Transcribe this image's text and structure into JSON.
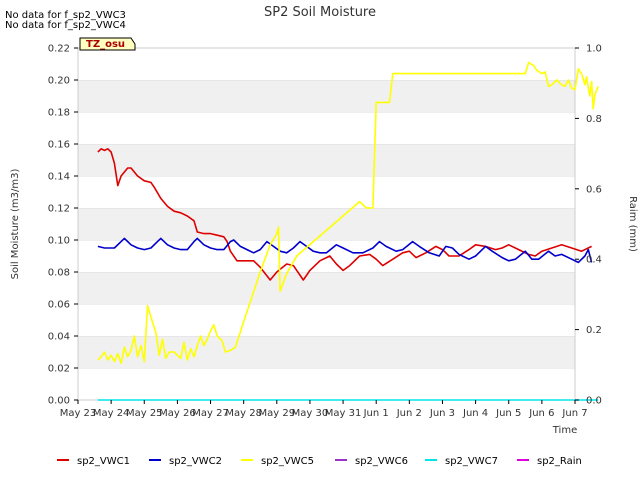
{
  "chart_data": {
    "type": "line",
    "title": "SP2 Soil Moisture",
    "xlabel": "Time",
    "ylabel": "Soil Moisture (m3/m3)",
    "y2label": "Raim (mm)",
    "notes": [
      "No data for f_sp2_VWC3",
      "No data for f_sp2_VWC4"
    ],
    "site_badge": "TZ_osu",
    "x_ticks": [
      "May 23",
      "May 24",
      "May 25",
      "May 26",
      "May 27",
      "May 28",
      "May 29",
      "May 30",
      "May 31",
      "Jun 1",
      "Jun 2",
      "Jun 3",
      "Jun 4",
      "Jun 5",
      "Jun 6",
      "Jun 7"
    ],
    "xlim": [
      0,
      15
    ],
    "ylim": [
      0,
      0.22
    ],
    "y_ticks": [
      "0.00",
      "0.02",
      "0.04",
      "0.06",
      "0.08",
      "0.10",
      "0.12",
      "0.14",
      "0.16",
      "0.18",
      "0.20",
      "0.22"
    ],
    "y2lim": [
      0,
      1.0
    ],
    "y2_ticks": [
      "0.0",
      "0.2",
      "0.4",
      "0.6",
      "0.8",
      "1.0"
    ],
    "grid": "horizontal bands",
    "legend_position": "bottom",
    "series": [
      {
        "name": "sp2_VWC1",
        "color": "#dd0000",
        "axis": "left",
        "points": [
          [
            0.6,
            0.155
          ],
          [
            0.7,
            0.157
          ],
          [
            0.8,
            0.156
          ],
          [
            0.9,
            0.157
          ],
          [
            1.0,
            0.155
          ],
          [
            1.1,
            0.148
          ],
          [
            1.2,
            0.134
          ],
          [
            1.3,
            0.14
          ],
          [
            1.5,
            0.145
          ],
          [
            1.6,
            0.145
          ],
          [
            1.8,
            0.14
          ],
          [
            2.0,
            0.137
          ],
          [
            2.2,
            0.136
          ],
          [
            2.3,
            0.133
          ],
          [
            2.5,
            0.126
          ],
          [
            2.7,
            0.121
          ],
          [
            2.9,
            0.118
          ],
          [
            3.1,
            0.117
          ],
          [
            3.3,
            0.115
          ],
          [
            3.5,
            0.112
          ],
          [
            3.6,
            0.105
          ],
          [
            3.8,
            0.104
          ],
          [
            4.0,
            0.104
          ],
          [
            4.2,
            0.103
          ],
          [
            4.4,
            0.102
          ],
          [
            4.5,
            0.099
          ],
          [
            4.6,
            0.093
          ],
          [
            4.8,
            0.087
          ],
          [
            5.0,
            0.087
          ],
          [
            5.3,
            0.087
          ],
          [
            5.5,
            0.083
          ],
          [
            5.8,
            0.075
          ],
          [
            6.0,
            0.08
          ],
          [
            6.3,
            0.085
          ],
          [
            6.5,
            0.084
          ],
          [
            6.8,
            0.075
          ],
          [
            7.0,
            0.081
          ],
          [
            7.3,
            0.087
          ],
          [
            7.6,
            0.09
          ],
          [
            7.8,
            0.085
          ],
          [
            8.0,
            0.081
          ],
          [
            8.2,
            0.084
          ],
          [
            8.5,
            0.09
          ],
          [
            8.8,
            0.091
          ],
          [
            9.0,
            0.088
          ],
          [
            9.2,
            0.084
          ],
          [
            9.5,
            0.088
          ],
          [
            9.8,
            0.092
          ],
          [
            10.0,
            0.093
          ],
          [
            10.2,
            0.089
          ],
          [
            10.5,
            0.092
          ],
          [
            10.8,
            0.096
          ],
          [
            11.0,
            0.094
          ],
          [
            11.2,
            0.09
          ],
          [
            11.5,
            0.09
          ],
          [
            11.8,
            0.094
          ],
          [
            12.0,
            0.097
          ],
          [
            12.3,
            0.096
          ],
          [
            12.6,
            0.094
          ],
          [
            12.8,
            0.095
          ],
          [
            13.0,
            0.097
          ],
          [
            13.3,
            0.094
          ],
          [
            13.6,
            0.091
          ],
          [
            13.8,
            0.09
          ],
          [
            14.0,
            0.093
          ],
          [
            14.3,
            0.095
          ],
          [
            14.6,
            0.097
          ],
          [
            14.9,
            0.095
          ],
          [
            15.2,
            0.093
          ],
          [
            15.5,
            0.096
          ]
        ]
      },
      {
        "name": "sp2_VWC2",
        "color": "#0000cc",
        "axis": "left",
        "points": [
          [
            0.6,
            0.096
          ],
          [
            0.8,
            0.095
          ],
          [
            1.1,
            0.095
          ],
          [
            1.3,
            0.099
          ],
          [
            1.4,
            0.101
          ],
          [
            1.6,
            0.097
          ],
          [
            1.8,
            0.095
          ],
          [
            2.0,
            0.094
          ],
          [
            2.2,
            0.095
          ],
          [
            2.4,
            0.099
          ],
          [
            2.5,
            0.101
          ],
          [
            2.7,
            0.097
          ],
          [
            2.9,
            0.095
          ],
          [
            3.1,
            0.094
          ],
          [
            3.3,
            0.094
          ],
          [
            3.5,
            0.099
          ],
          [
            3.6,
            0.101
          ],
          [
            3.8,
            0.097
          ],
          [
            4.0,
            0.095
          ],
          [
            4.2,
            0.094
          ],
          [
            4.4,
            0.094
          ],
          [
            4.6,
            0.099
          ],
          [
            4.7,
            0.1
          ],
          [
            4.9,
            0.096
          ],
          [
            5.1,
            0.094
          ],
          [
            5.3,
            0.092
          ],
          [
            5.5,
            0.094
          ],
          [
            5.7,
            0.099
          ],
          [
            5.9,
            0.096
          ],
          [
            6.1,
            0.093
          ],
          [
            6.3,
            0.092
          ],
          [
            6.5,
            0.095
          ],
          [
            6.7,
            0.099
          ],
          [
            6.9,
            0.096
          ],
          [
            7.1,
            0.093
          ],
          [
            7.3,
            0.092
          ],
          [
            7.5,
            0.092
          ],
          [
            7.8,
            0.097
          ],
          [
            8.0,
            0.095
          ],
          [
            8.3,
            0.092
          ],
          [
            8.6,
            0.092
          ],
          [
            8.9,
            0.095
          ],
          [
            9.1,
            0.099
          ],
          [
            9.3,
            0.096
          ],
          [
            9.6,
            0.093
          ],
          [
            9.8,
            0.094
          ],
          [
            10.1,
            0.099
          ],
          [
            10.3,
            0.096
          ],
          [
            10.6,
            0.092
          ],
          [
            10.9,
            0.09
          ],
          [
            11.1,
            0.096
          ],
          [
            11.3,
            0.095
          ],
          [
            11.5,
            0.091
          ],
          [
            11.8,
            0.088
          ],
          [
            12.0,
            0.09
          ],
          [
            12.3,
            0.096
          ],
          [
            12.5,
            0.093
          ],
          [
            12.8,
            0.089
          ],
          [
            13.0,
            0.087
          ],
          [
            13.2,
            0.088
          ],
          [
            13.5,
            0.093
          ],
          [
            13.7,
            0.088
          ],
          [
            13.9,
            0.088
          ],
          [
            14.2,
            0.093
          ],
          [
            14.4,
            0.09
          ],
          [
            14.6,
            0.091
          ],
          [
            14.9,
            0.088
          ],
          [
            15.1,
            0.086
          ],
          [
            15.3,
            0.09
          ],
          [
            15.4,
            0.094
          ],
          [
            15.5,
            0.086
          ]
        ]
      },
      {
        "name": "sp2_VWC5",
        "color": "#ffff00",
        "axis": "left",
        "points": [
          [
            0.6,
            0.025
          ],
          [
            0.7,
            0.027
          ],
          [
            0.8,
            0.03
          ],
          [
            0.9,
            0.025
          ],
          [
            1.0,
            0.028
          ],
          [
            1.1,
            0.024
          ],
          [
            1.2,
            0.029
          ],
          [
            1.3,
            0.023
          ],
          [
            1.4,
            0.033
          ],
          [
            1.5,
            0.027
          ],
          [
            1.6,
            0.031
          ],
          [
            1.7,
            0.04
          ],
          [
            1.8,
            0.027
          ],
          [
            1.9,
            0.034
          ],
          [
            2.0,
            0.024
          ],
          [
            2.1,
            0.059
          ],
          [
            2.2,
            0.052
          ],
          [
            2.35,
            0.042
          ],
          [
            2.45,
            0.028
          ],
          [
            2.55,
            0.038
          ],
          [
            2.65,
            0.026
          ],
          [
            2.75,
            0.03
          ],
          [
            2.9,
            0.03
          ],
          [
            3.0,
            0.028
          ],
          [
            3.1,
            0.026
          ],
          [
            3.2,
            0.036
          ],
          [
            3.3,
            0.025
          ],
          [
            3.4,
            0.032
          ],
          [
            3.5,
            0.027
          ],
          [
            3.6,
            0.034
          ],
          [
            3.7,
            0.04
          ],
          [
            3.8,
            0.034
          ],
          [
            3.9,
            0.038
          ],
          [
            4.0,
            0.043
          ],
          [
            4.1,
            0.047
          ],
          [
            4.2,
            0.04
          ],
          [
            4.35,
            0.037
          ],
          [
            4.45,
            0.03
          ],
          [
            4.6,
            0.031
          ],
          [
            4.75,
            0.033
          ],
          [
            5.0,
            0.049
          ],
          [
            5.5,
            0.08
          ],
          [
            5.8,
            0.097
          ],
          [
            6.0,
            0.104
          ],
          [
            6.05,
            0.108
          ],
          [
            6.1,
            0.068
          ],
          [
            6.3,
            0.079
          ],
          [
            6.6,
            0.09
          ],
          [
            8.5,
            0.124
          ],
          [
            8.7,
            0.12
          ],
          [
            8.9,
            0.12
          ],
          [
            9.0,
            0.186
          ],
          [
            9.4,
            0.186
          ],
          [
            9.5,
            0.204
          ],
          [
            13.5,
            0.204
          ],
          [
            13.6,
            0.211
          ],
          [
            13.75,
            0.209
          ],
          [
            13.85,
            0.206
          ],
          [
            14.0,
            0.204
          ],
          [
            14.1,
            0.205
          ],
          [
            14.2,
            0.196
          ],
          [
            14.3,
            0.197
          ],
          [
            14.45,
            0.2
          ],
          [
            14.6,
            0.197
          ],
          [
            14.7,
            0.196
          ],
          [
            14.8,
            0.2
          ],
          [
            14.9,
            0.195
          ],
          [
            15.0,
            0.194
          ],
          [
            15.1,
            0.207
          ],
          [
            15.2,
            0.204
          ],
          [
            15.3,
            0.197
          ],
          [
            15.35,
            0.202
          ],
          [
            15.4,
            0.195
          ],
          [
            15.45,
            0.19
          ],
          [
            15.5,
            0.199
          ],
          [
            15.55,
            0.182
          ],
          [
            15.6,
            0.191
          ],
          [
            15.7,
            0.196
          ]
        ]
      },
      {
        "name": "sp2_VWC6",
        "color": "#9933cc",
        "axis": "left",
        "points": []
      },
      {
        "name": "sp2_VWC7",
        "color": "#00e5e5",
        "axis": "left",
        "points": [
          [
            0.6,
            0.0
          ],
          [
            15.7,
            0.0
          ]
        ]
      },
      {
        "name": "sp2_Rain",
        "color": "#dd00dd",
        "axis": "right",
        "points": []
      }
    ]
  }
}
